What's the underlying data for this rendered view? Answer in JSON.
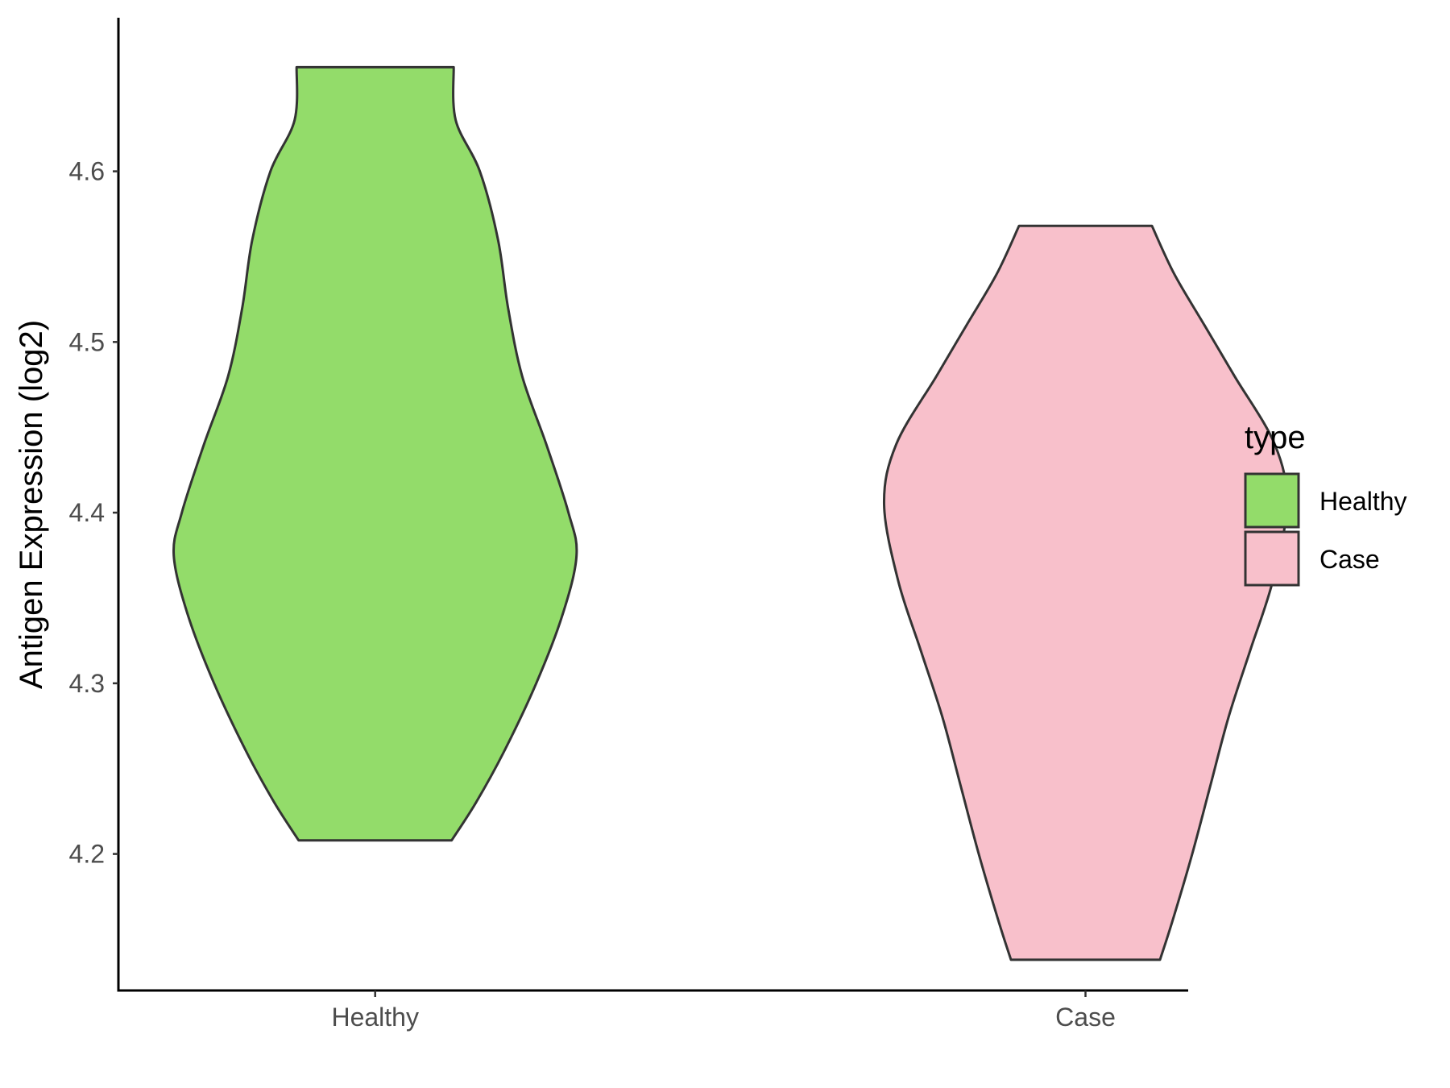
{
  "chart_data": {
    "type": "violin",
    "title": "",
    "xlabel": "",
    "ylabel": "Antigen Expression (log2)",
    "categories": [
      "Healthy",
      "Case"
    ],
    "ylim": [
      4.12,
      4.69
    ],
    "yticks": [
      4.2,
      4.3,
      4.4,
      4.5,
      4.6
    ],
    "ytick_labels": [
      "4.2",
      "4.3",
      "4.4",
      "4.5",
      "4.6"
    ],
    "grid": false,
    "legend": {
      "title": "type",
      "position": "right",
      "entries": [
        {
          "label": "Healthy",
          "color": "#93DC6A"
        },
        {
          "label": "Case",
          "color": "#F8C0CB"
        }
      ]
    },
    "series": [
      {
        "name": "Healthy",
        "color": "#93DC6A",
        "min": 4.208,
        "max": 4.661,
        "profile": [
          [
            4.208,
            0.38
          ],
          [
            4.23,
            0.5
          ],
          [
            4.26,
            0.64
          ],
          [
            4.3,
            0.8
          ],
          [
            4.34,
            0.93
          ],
          [
            4.375,
            1.0
          ],
          [
            4.4,
            0.96
          ],
          [
            4.44,
            0.85
          ],
          [
            4.48,
            0.73
          ],
          [
            4.52,
            0.66
          ],
          [
            4.56,
            0.61
          ],
          [
            4.6,
            0.52
          ],
          [
            4.63,
            0.4
          ],
          [
            4.661,
            0.39
          ]
        ]
      },
      {
        "name": "Case",
        "color": "#F8C0CB",
        "min": 4.138,
        "max": 4.568,
        "profile": [
          [
            4.138,
            0.37
          ],
          [
            4.16,
            0.43
          ],
          [
            4.2,
            0.53
          ],
          [
            4.24,
            0.62
          ],
          [
            4.28,
            0.71
          ],
          [
            4.32,
            0.82
          ],
          [
            4.36,
            0.93
          ],
          [
            4.405,
            1.0
          ],
          [
            4.44,
            0.94
          ],
          [
            4.48,
            0.74
          ],
          [
            4.51,
            0.59
          ],
          [
            4.54,
            0.44
          ],
          [
            4.568,
            0.33
          ]
        ]
      }
    ]
  }
}
